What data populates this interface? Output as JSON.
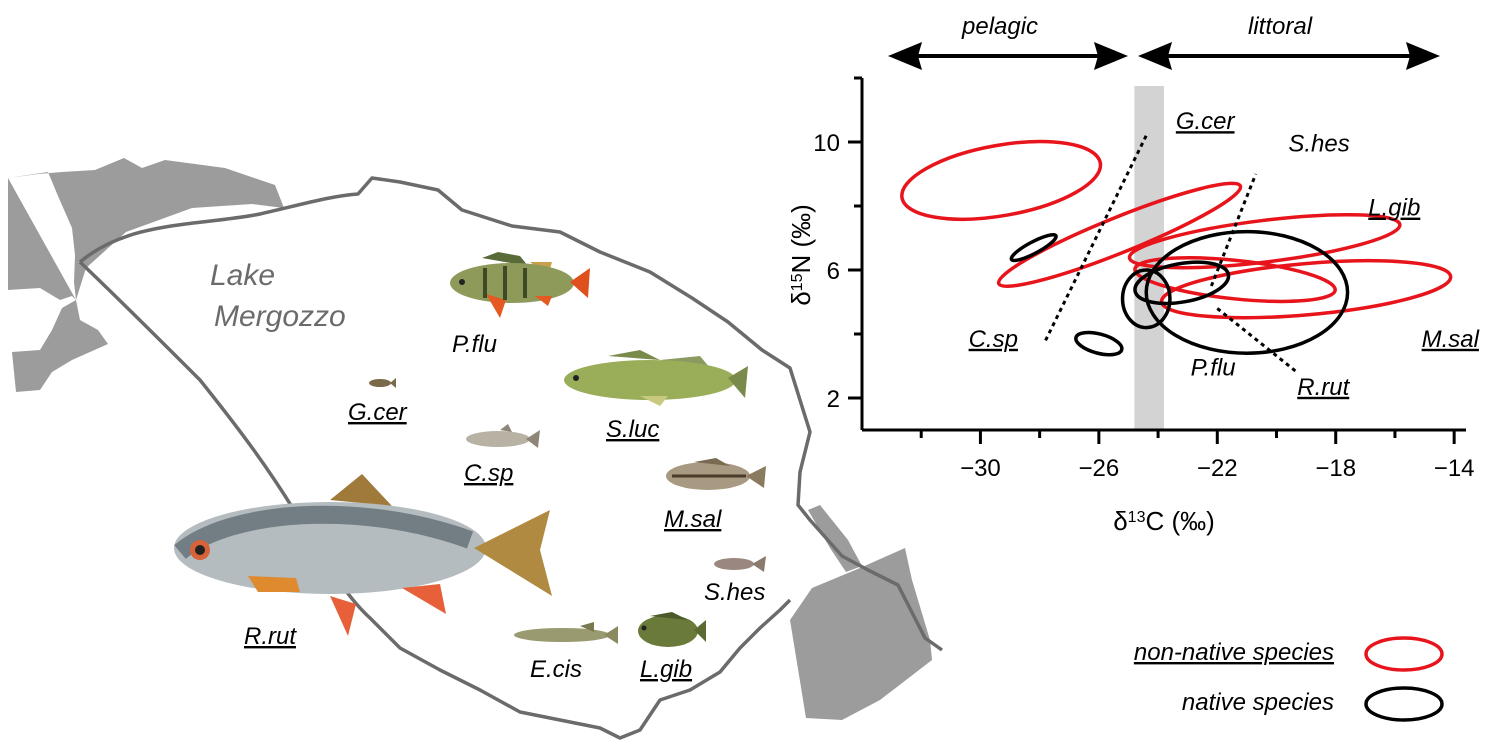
{
  "lake": {
    "name_line1": "Lake",
    "name_line2": "Mergozzo"
  },
  "species_map_labels": [
    {
      "key": "pflu",
      "text": "P.flu",
      "underline": false
    },
    {
      "key": "gcer",
      "text": "G.cer",
      "underline": true
    },
    {
      "key": "csp",
      "text": "C.sp",
      "underline": true
    },
    {
      "key": "sluc",
      "text": "S.luc",
      "underline": true
    },
    {
      "key": "msal",
      "text": "M.sal",
      "underline": true
    },
    {
      "key": "shes",
      "text": "S.hes",
      "underline": false
    },
    {
      "key": "rrut",
      "text": "R.rut",
      "underline": true
    },
    {
      "key": "ecis",
      "text": "E.cis",
      "underline": false
    },
    {
      "key": "lgib",
      "text": "L.gib",
      "underline": true
    }
  ],
  "zones": {
    "pelagic": "pelagic",
    "littoral": "littoral"
  },
  "legend": {
    "non_native": "non-native species",
    "native": "native species"
  },
  "colors": {
    "non_native": "#e8141b",
    "native": "#000000",
    "land": "#9c9c9c",
    "shore": "#6b6b6b",
    "band": "#d3d3d3"
  },
  "chart_data": {
    "type": "scatter",
    "xlabel": "δ13C (‰)",
    "ylabel": "δ15N (‰)",
    "xlim": [
      -34,
      -13.6
    ],
    "ylim": [
      1,
      12
    ],
    "x_ticks": [
      -30,
      -26,
      -22,
      -18,
      -14
    ],
    "y_ticks": [
      2,
      6,
      10
    ],
    "boundary_band_x": [
      -24.8,
      -23.8
    ],
    "ellipses": [
      {
        "species": "S.luc",
        "group": "non-native",
        "cx": -29.3,
        "cy": 8.8,
        "rx": 3.4,
        "ry": 1.1,
        "angle": -10
      },
      {
        "species": "G.cer",
        "group": "non-native",
        "cx": -25.3,
        "cy": 7.1,
        "rx": 4.4,
        "ry": 0.55,
        "angle": -22
      },
      {
        "species": "L.gib",
        "group": "non-native",
        "cx": -20.4,
        "cy": 6.9,
        "rx": 4.6,
        "ry": 0.65,
        "angle": -7
      },
      {
        "species": "M.sal",
        "group": "non-native",
        "cx": -19.0,
        "cy": 5.4,
        "rx": 4.9,
        "ry": 0.8,
        "angle": -5
      },
      {
        "species": "R.rut",
        "group": "non-native",
        "cx": -21.4,
        "cy": 5.7,
        "rx": 3.4,
        "ry": 0.6,
        "angle": 6
      },
      {
        "species": "C.sp",
        "group": "native",
        "cx": -28.2,
        "cy": 6.7,
        "rx": 0.85,
        "ry": 0.18,
        "angle": -28
      },
      {
        "species": "E.cis",
        "group": "native",
        "cx": -26.0,
        "cy": 3.7,
        "rx": 0.8,
        "ry": 0.3,
        "angle": 15
      },
      {
        "species": "S.hes",
        "group": "native",
        "cx": -23.2,
        "cy": 5.6,
        "rx": 1.6,
        "ry": 0.6,
        "angle": -10
      },
      {
        "species": "P.flu",
        "group": "native",
        "cx": -21.0,
        "cy": 5.3,
        "rx": 3.4,
        "ry": 1.9,
        "angle": 0
      },
      {
        "species": "",
        "group": "native",
        "cx": -24.4,
        "cy": 5.1,
        "rx": 0.8,
        "ry": 0.9,
        "angle": 0
      }
    ],
    "species_labels": [
      {
        "text": "G.cer",
        "underline": true,
        "x": -23.4,
        "y": 10.4
      },
      {
        "text": "S.hes",
        "underline": false,
        "x": -19.6,
        "y": 9.7
      },
      {
        "text": "L.gib",
        "underline": true,
        "x": -16.9,
        "y": 7.7
      },
      {
        "text": "C.sp",
        "underline": true,
        "x": -30.4,
        "y": 3.6
      },
      {
        "text": "P.flu",
        "underline": false,
        "x": -22.9,
        "y": 2.7
      },
      {
        "text": "R.rut",
        "underline": true,
        "x": -19.3,
        "y": 2.1
      },
      {
        "text": "M.sal",
        "underline": true,
        "x": -15.1,
        "y": 3.6
      }
    ],
    "leader_lines": [
      {
        "from": [
          -27.8,
          3.8
        ],
        "to": [
          -24.4,
          10.2
        ]
      },
      {
        "from": [
          -22.2,
          5.5
        ],
        "to": [
          -20.7,
          9.0
        ]
      },
      {
        "from": [
          -22.0,
          4.8
        ],
        "to": [
          -19.3,
          2.8
        ]
      }
    ]
  }
}
